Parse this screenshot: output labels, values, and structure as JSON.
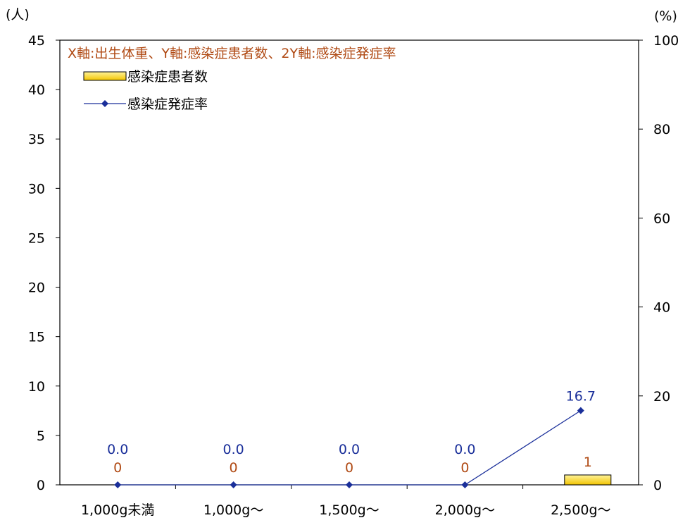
{
  "chart_data": {
    "type": "bar",
    "title": "X軸:出生体重、Y軸:感染症患者数、2Y軸:感染症発症率",
    "categories": [
      "1,000g未満",
      "1,000g〜",
      "1,500g〜",
      "2,000g〜",
      "2,500g〜"
    ],
    "y_unit": "(人)",
    "y2_unit": "(%)",
    "ylim": [
      0,
      45
    ],
    "y_ticks": [
      0,
      5,
      10,
      15,
      20,
      25,
      30,
      35,
      40,
      45
    ],
    "y2lim": [
      0,
      100
    ],
    "y2_ticks": [
      0,
      20,
      40,
      60,
      80,
      100
    ],
    "legend_position": "top-left",
    "grid": false,
    "series": [
      {
        "name": "感染症患者数",
        "type": "bar",
        "axis": "left",
        "values": [
          0,
          0,
          0,
          0,
          1
        ],
        "labels": [
          "0",
          "0",
          "0",
          "0",
          "1"
        ],
        "color": "#ffd700"
      },
      {
        "name": "感染症発症率",
        "type": "line",
        "axis": "right",
        "values": [
          0.0,
          0.0,
          0.0,
          0.0,
          16.7
        ],
        "labels": [
          "0.0",
          "0.0",
          "0.0",
          "0.0",
          "16.7"
        ],
        "color": "#1a2f9a"
      }
    ]
  }
}
